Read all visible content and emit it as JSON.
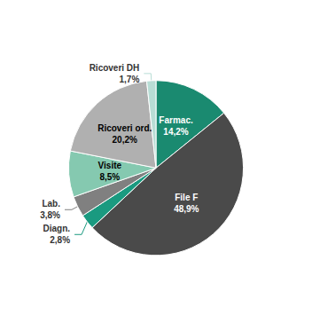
{
  "chart_data": {
    "type": "pie",
    "categories": [
      "Farmac.",
      "File F",
      "Diagn.",
      "Lab.",
      "Visite",
      "Ricoveri ord.",
      "Ricoveri DH"
    ],
    "values": [
      14.2,
      48.9,
      2.8,
      3.8,
      8.5,
      20.2,
      1.7
    ],
    "value_labels": [
      "14,2%",
      "48,9%",
      "2,8%",
      "3,8%",
      "8,5%",
      "20,2%",
      "1,7%"
    ],
    "colors": [
      "#1a8a70",
      "#4a4a4a",
      "#1a9a80",
      "#808080",
      "#85c9b0",
      "#b0b0b0",
      "#b8ddd5"
    ],
    "data_labels": true
  }
}
